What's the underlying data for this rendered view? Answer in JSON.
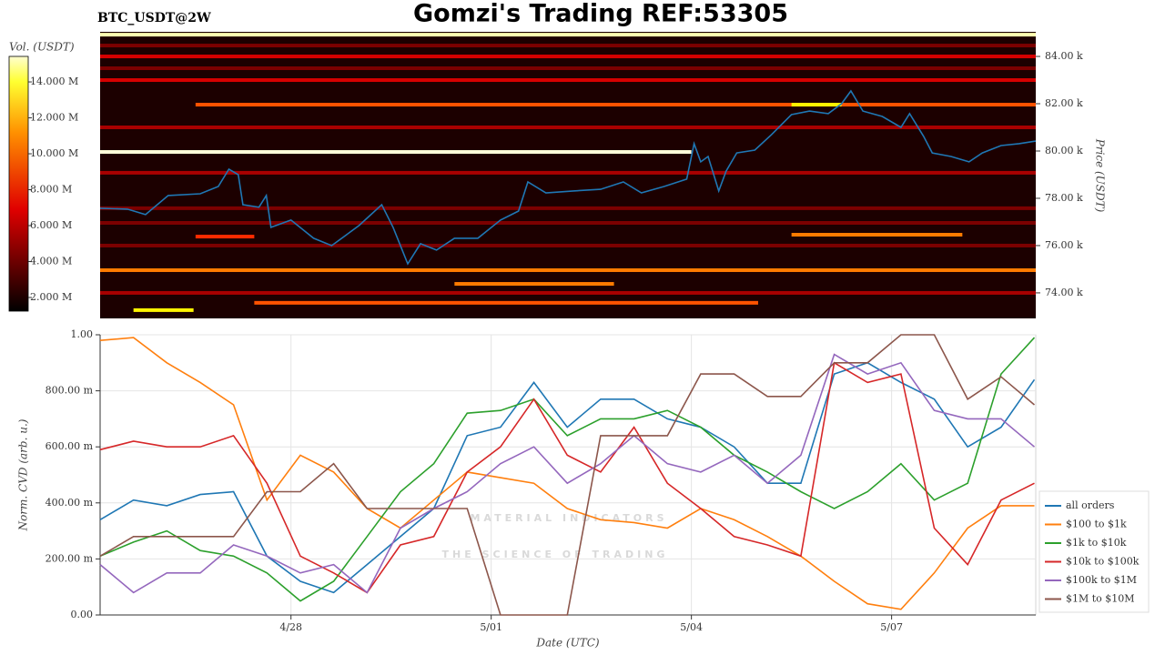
{
  "chart_data": [
    {
      "type": "heatmap",
      "title": "Gomzi's Trading REF:53305",
      "symbol": "BTC_USDT@2W",
      "ylabel": "Price (USDT)",
      "colorbar_label": "Vol. (USDT)",
      "xlim": [
        25.14,
        39.16
      ],
      "ylim": [
        72920,
        85040
      ],
      "yticks": [
        {
          "value": 74000,
          "label": "74.00 k"
        },
        {
          "value": 76000,
          "label": "76.00 k"
        },
        {
          "value": 78000,
          "label": "78.00 k"
        },
        {
          "value": 80000,
          "label": "80.00 k"
        },
        {
          "value": 82000,
          "label": "82.00 k"
        },
        {
          "value": 84000,
          "label": "84.00 k"
        }
      ],
      "zlim": [
        1240000,
        15420000
      ],
      "zticks": [
        {
          "value": 2000000,
          "label": "2.000 M"
        },
        {
          "value": 4000000,
          "label": "4.000 M"
        },
        {
          "value": 6000000,
          "label": "6.000 M"
        },
        {
          "value": 8000000,
          "label": "8.000 M"
        },
        {
          "value": 10000000,
          "label": "10.000 M"
        },
        {
          "value": 12000000,
          "label": "12.000 M"
        },
        {
          "value": 14000000,
          "label": "14.000 M"
        }
      ],
      "levels": {
        "price": [
          84920,
          79960,
          81960,
          81960,
          74960,
          76380,
          76460,
          74380,
          73580,
          73270,
          84000,
          83000,
          79080,
          76000,
          74000,
          81000,
          83500,
          84460,
          77580,
          76960
        ],
        "start": [
          25.14,
          25.14,
          26.57,
          35.5,
          25.14,
          26.57,
          35.5,
          30.45,
          27.45,
          25.64,
          25.14,
          25.14,
          25.14,
          25.14,
          25.14,
          25.14,
          25.14,
          25.14,
          25.14,
          25.14
        ],
        "end": [
          39.16,
          34.0,
          39.16,
          36.25,
          39.16,
          27.45,
          38.06,
          32.84,
          35.0,
          26.54,
          39.16,
          39.16,
          39.16,
          39.16,
          39.16,
          39.16,
          39.16,
          39.16,
          39.16,
          39.16
        ],
        "volume": [
          15000000,
          15400000,
          9000000,
          13000000,
          10000000,
          8000000,
          10000000,
          10000000,
          9000000,
          13000000,
          6000000,
          6000000,
          5000000,
          4000000,
          5000000,
          5000000,
          4000000,
          4000000,
          4000000,
          4000000
        ]
      },
      "line": {
        "color": "#1f77b4",
        "x": [
          25.14,
          25.55,
          25.82,
          26.16,
          26.64,
          26.91,
          27.07,
          27.21,
          27.28,
          27.52,
          27.63,
          27.7,
          28.0,
          28.34,
          28.61,
          29.02,
          29.36,
          29.53,
          29.75,
          29.94,
          30.18,
          30.45,
          30.8,
          31.14,
          31.41,
          31.55,
          31.82,
          32.23,
          32.64,
          32.98,
          33.25,
          33.59,
          33.93,
          34.04,
          34.14,
          34.25,
          34.41,
          34.52,
          34.68,
          34.95,
          35.2,
          35.5,
          35.77,
          36.05,
          36.25,
          36.39,
          36.57,
          36.86,
          37.14,
          37.27,
          37.48,
          37.61,
          37.89,
          38.16,
          38.36,
          38.64,
          38.91,
          39.16
        ],
        "values": [
          77580,
          77540,
          77310,
          78120,
          78190,
          78500,
          79230,
          79000,
          77730,
          77620,
          78120,
          76770,
          77080,
          76310,
          76000,
          76850,
          77730,
          76770,
          75230,
          76080,
          75810,
          76310,
          76310,
          77080,
          77460,
          78690,
          78230,
          78310,
          78380,
          78690,
          78230,
          78500,
          78810,
          80310,
          79540,
          79770,
          78310,
          79150,
          79920,
          80040,
          80690,
          81540,
          81690,
          81580,
          82000,
          82540,
          81690,
          81460,
          81000,
          81580,
          80620,
          79920,
          79770,
          79540,
          79920,
          80230,
          80310,
          80420
        ]
      }
    },
    {
      "type": "line",
      "xlabel": "Date (UTC)",
      "ylabel": "Norm. CVD (arb. u.)",
      "watermark": {
        "name": "MATERIAL INDICATORS",
        "tagline": "THE SCIENCE OF TRADING"
      },
      "xlim": [
        25.14,
        39.16
      ],
      "ylim": [
        0,
        1
      ],
      "xticks": [
        {
          "value": 28,
          "label": "4/28"
        },
        {
          "value": 31,
          "label": "5/01"
        },
        {
          "value": 34,
          "label": "5/04"
        },
        {
          "value": 37,
          "label": "5/07"
        }
      ],
      "yticks": [
        {
          "value": 0,
          "label": "0.00"
        },
        {
          "value": 0.2,
          "label": "200.00 m"
        },
        {
          "value": 0.4,
          "label": "400.00 m"
        },
        {
          "value": 0.6,
          "label": "600.00 m"
        },
        {
          "value": 0.8,
          "label": "800.00 m"
        },
        {
          "value": 1,
          "label": "1.00"
        }
      ],
      "grid": true,
      "legend": "right",
      "x": [
        25.14,
        25.64,
        26.14,
        26.64,
        27.14,
        27.64,
        28.14,
        28.64,
        29.14,
        29.64,
        30.14,
        30.64,
        31.14,
        31.64,
        32.14,
        32.64,
        33.14,
        33.64,
        34.14,
        34.64,
        35.14,
        35.64,
        36.14,
        36.64,
        37.14,
        37.64,
        38.14,
        38.64,
        39.14
      ],
      "series": [
        {
          "name": "all orders",
          "color": "#1f77b4",
          "values": [
            0.34,
            0.41,
            0.39,
            0.43,
            0.44,
            0.21,
            0.12,
            0.08,
            0.18,
            0.28,
            0.38,
            0.64,
            0.67,
            0.83,
            0.67,
            0.77,
            0.77,
            0.7,
            0.67,
            0.6,
            0.47,
            0.47,
            0.86,
            0.9,
            0.83,
            0.77,
            0.6,
            0.67,
            0.84
          ]
        },
        {
          "name": "$100 to $1k",
          "color": "#ff7f0e",
          "values": [
            0.98,
            0.99,
            0.9,
            0.83,
            0.75,
            0.41,
            0.57,
            0.51,
            0.38,
            0.31,
            0.41,
            0.51,
            0.49,
            0.47,
            0.38,
            0.34,
            0.33,
            0.31,
            0.38,
            0.34,
            0.28,
            0.21,
            0.12,
            0.04,
            0.02,
            0.15,
            0.31,
            0.39,
            0.39
          ]
        },
        {
          "name": "$1k to $10k",
          "color": "#2ca02c",
          "values": [
            0.21,
            0.26,
            0.3,
            0.23,
            0.21,
            0.15,
            0.05,
            0.12,
            0.28,
            0.44,
            0.54,
            0.72,
            0.73,
            0.77,
            0.64,
            0.7,
            0.7,
            0.73,
            0.67,
            0.57,
            0.51,
            0.44,
            0.38,
            0.44,
            0.54,
            0.41,
            0.47,
            0.86,
            0.99
          ]
        },
        {
          "name": "$10k to $100k",
          "color": "#d62728",
          "values": [
            0.59,
            0.62,
            0.6,
            0.6,
            0.64,
            0.47,
            0.21,
            0.15,
            0.08,
            0.25,
            0.28,
            0.51,
            0.6,
            0.77,
            0.57,
            0.51,
            0.67,
            0.47,
            0.38,
            0.28,
            0.25,
            0.21,
            0.9,
            0.83,
            0.86,
            0.31,
            0.18,
            0.41,
            0.47
          ]
        },
        {
          "name": "$100k to $1M",
          "color": "#9467bd",
          "values": [
            0.18,
            0.08,
            0.15,
            0.15,
            0.25,
            0.21,
            0.15,
            0.18,
            0.08,
            0.31,
            0.38,
            0.44,
            0.54,
            0.6,
            0.47,
            0.54,
            0.64,
            0.54,
            0.51,
            0.57,
            0.47,
            0.57,
            0.93,
            0.86,
            0.9,
            0.73,
            0.7,
            0.7,
            0.6
          ]
        },
        {
          "name": "$1M to $10M",
          "color": "#8c564b",
          "values": [
            0.21,
            0.28,
            0.28,
            0.28,
            0.28,
            0.44,
            0.44,
            0.54,
            0.38,
            0.38,
            0.38,
            0.38,
            0.0,
            0.0,
            0.0,
            0.64,
            0.64,
            0.64,
            0.86,
            0.86,
            0.78,
            0.78,
            0.9,
            0.9,
            1.0,
            1.0,
            0.77,
            0.85,
            0.75
          ]
        }
      ]
    }
  ]
}
